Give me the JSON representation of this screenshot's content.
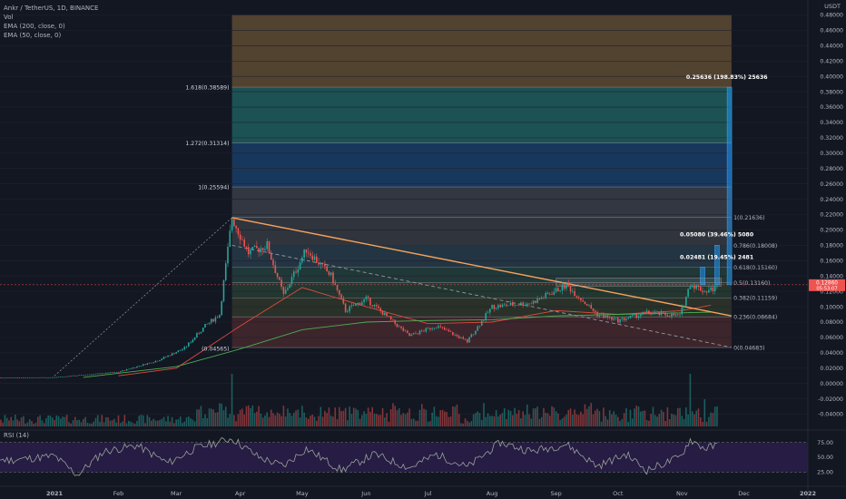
{
  "header": {
    "symbol_line": "Ankr / TetherUS, 1D, BINANCE",
    "vol_label": "Vol",
    "ema200_label": "EMA (200, close, 0)",
    "ema50_label": "EMA (50, close, 0)",
    "currency": "USDT",
    "rsi_label": "RSI (14)"
  },
  "colors": {
    "background": "#131722",
    "up_candle": "#26a69a",
    "down_candle": "#ef5350",
    "ema50": "#e0493f",
    "ema200": "#4caf50",
    "trendline": "#f7a35c",
    "rsi_line": "#9aa39a",
    "rsi_band": "#2a1d4a"
  },
  "chart_data": {
    "type": "candlestick",
    "y_axis": {
      "ylim": [
        -0.05,
        0.49
      ],
      "tick_labels": [
        "0.48000",
        "0.46000",
        "0.44000",
        "0.42000",
        "0.40000",
        "0.38000",
        "0.36000",
        "0.34000",
        "0.32000",
        "0.30000",
        "0.28000",
        "0.26000",
        "0.24000",
        "0.22000",
        "0.20000",
        "0.18000",
        "0.16000",
        "0.14000",
        "0.12000",
        "0.10000",
        "0.08000",
        "0.06000",
        "0.04000",
        "0.02000",
        "0.00000",
        "-0.02000",
        "-0.04000"
      ],
      "ticks": [
        0.48,
        0.46,
        0.44,
        0.42,
        0.4,
        0.38,
        0.36,
        0.34,
        0.32,
        0.3,
        0.28,
        0.26,
        0.24,
        0.22,
        0.2,
        0.18,
        0.16,
        0.14,
        0.12,
        0.1,
        0.08,
        0.06,
        0.04,
        0.02,
        0.0,
        -0.02,
        -0.04
      ]
    },
    "x_axis": {
      "tick_labels": [
        "2021",
        "Feb",
        "Mar",
        "Apr",
        "May",
        "Jun",
        "Jul",
        "Aug",
        "Sep",
        "Oct",
        "Nov",
        "Dec",
        "2022"
      ],
      "tick_dates": [
        "2021-01-01",
        "2021-02-01",
        "2021-03-01",
        "2021-04-01",
        "2021-05-01",
        "2021-06-01",
        "2021-07-01",
        "2021-08-01",
        "2021-09-01",
        "2021-10-01",
        "2021-11-01",
        "2021-12-01",
        "2022-01-01"
      ]
    },
    "price_path": [
      [
        "2020-11-20",
        0.007
      ],
      [
        "2021-01-01",
        0.008
      ],
      [
        "2021-02-01",
        0.015
      ],
      [
        "2021-02-20",
        0.03
      ],
      [
        "2021-03-05",
        0.046
      ],
      [
        "2021-03-15",
        0.075
      ],
      [
        "2021-03-22",
        0.09
      ],
      [
        "2021-03-28",
        0.216
      ],
      [
        "2021-04-05",
        0.17
      ],
      [
        "2021-04-14",
        0.18
      ],
      [
        "2021-04-22",
        0.115
      ],
      [
        "2021-05-03",
        0.175
      ],
      [
        "2021-05-15",
        0.14
      ],
      [
        "2021-05-22",
        0.095
      ],
      [
        "2021-06-01",
        0.11
      ],
      [
        "2021-06-22",
        0.062
      ],
      [
        "2021-07-05",
        0.075
      ],
      [
        "2021-07-20",
        0.055
      ],
      [
        "2021-08-01",
        0.1
      ],
      [
        "2021-08-20",
        0.105
      ],
      [
        "2021-09-06",
        0.128
      ],
      [
        "2021-09-21",
        0.09
      ],
      [
        "2021-10-01",
        0.082
      ],
      [
        "2021-10-15",
        0.092
      ],
      [
        "2021-10-31",
        0.088
      ],
      [
        "2021-11-05",
        0.13
      ],
      [
        "2021-11-12",
        0.12
      ],
      [
        "2021-11-18",
        0.125
      ]
    ],
    "series": [
      {
        "name": "EMA (50, close, 0)",
        "values": [
          [
            "2021-02-01",
            0.01
          ],
          [
            "2021-03-01",
            0.02
          ],
          [
            "2021-04-01",
            0.075
          ],
          [
            "2021-05-01",
            0.125
          ],
          [
            "2021-06-01",
            0.1
          ],
          [
            "2021-07-01",
            0.078
          ],
          [
            "2021-08-01",
            0.08
          ],
          [
            "2021-09-01",
            0.095
          ],
          [
            "2021-10-01",
            0.09
          ],
          [
            "2021-11-01",
            0.095
          ],
          [
            "2021-11-15",
            0.102
          ]
        ]
      },
      {
        "name": "EMA (200, close, 0)",
        "values": [
          [
            "2021-01-15",
            0.008
          ],
          [
            "2021-03-01",
            0.022
          ],
          [
            "2021-04-01",
            0.045
          ],
          [
            "2021-05-01",
            0.07
          ],
          [
            "2021-06-01",
            0.08
          ],
          [
            "2021-07-01",
            0.082
          ],
          [
            "2021-08-01",
            0.083
          ],
          [
            "2021-09-01",
            0.088
          ],
          [
            "2021-10-01",
            0.09
          ],
          [
            "2021-11-01",
            0.092
          ],
          [
            "2021-11-15",
            0.093
          ]
        ]
      }
    ],
    "fib_levels": [
      {
        "label": "0(0.04683)",
        "value": 0.04683
      },
      {
        "label": "0.236(0.08684)",
        "value": 0.08684
      },
      {
        "label": "0.382(0.11159)",
        "value": 0.11159
      },
      {
        "label": "0.5(0.13160)",
        "value": 0.1316
      },
      {
        "label": "0.618(0.15160)",
        "value": 0.1516
      },
      {
        "label": "0.786(0.18008)",
        "value": 0.18008
      },
      {
        "label": "1(0.21636)",
        "value": 0.21636
      }
    ],
    "fib_extensions": [
      {
        "label": "1(0.25594)",
        "value": 0.25594
      },
      {
        "label": "1.272(0.31314)",
        "value": 0.31314
      },
      {
        "label": "1.618(0.38589)",
        "value": 0.38589
      }
    ],
    "extension_label_low": "(0.04565)",
    "targets": [
      {
        "label": "0.25636 (198.83%) 25636",
        "value": 0.38589
      },
      {
        "label": "0.05080 (39.46%) 5080",
        "value": 0.18008
      },
      {
        "label": "0.02481 (19.45%) 2481",
        "value": 0.1516
      }
    ],
    "trendline": {
      "start": [
        "2021-03-28",
        0.216
      ],
      "end": [
        "2021-11-25",
        0.088
      ]
    },
    "dashed_line": {
      "start": [
        "2021-03-28",
        0.18
      ],
      "end": [
        "2021-11-25",
        0.047
      ]
    },
    "current_price": {
      "value": 0.1286,
      "label": "0.12860",
      "countdown": "05:53:07"
    },
    "rsi": {
      "ylim": [
        10,
        90
      ],
      "tick_labels": [
        "75.00",
        "50.00",
        "25.00"
      ],
      "ticks": [
        75,
        50,
        25
      ],
      "values": [
        [
          "2020-11-20",
          50
        ],
        [
          "2020-12-10",
          45
        ],
        [
          "2021-01-01",
          52
        ],
        [
          "2021-01-12",
          20
        ],
        [
          "2021-01-25",
          60
        ],
        [
          "2021-02-10",
          70
        ],
        [
          "2021-02-25",
          40
        ],
        [
          "2021-03-10",
          65
        ],
        [
          "2021-03-28",
          82
        ],
        [
          "2021-04-10",
          50
        ],
        [
          "2021-04-22",
          35
        ],
        [
          "2021-05-03",
          65
        ],
        [
          "2021-05-20",
          28
        ],
        [
          "2021-06-05",
          55
        ],
        [
          "2021-06-22",
          32
        ],
        [
          "2021-07-05",
          55
        ],
        [
          "2021-07-20",
          33
        ],
        [
          "2021-08-05",
          75
        ],
        [
          "2021-08-20",
          60
        ],
        [
          "2021-09-06",
          72
        ],
        [
          "2021-09-21",
          35
        ],
        [
          "2021-10-05",
          55
        ],
        [
          "2021-10-15",
          28
        ],
        [
          "2021-10-31",
          50
        ],
        [
          "2021-11-05",
          80
        ],
        [
          "2021-11-12",
          65
        ],
        [
          "2021-11-18",
          70
        ]
      ]
    }
  }
}
